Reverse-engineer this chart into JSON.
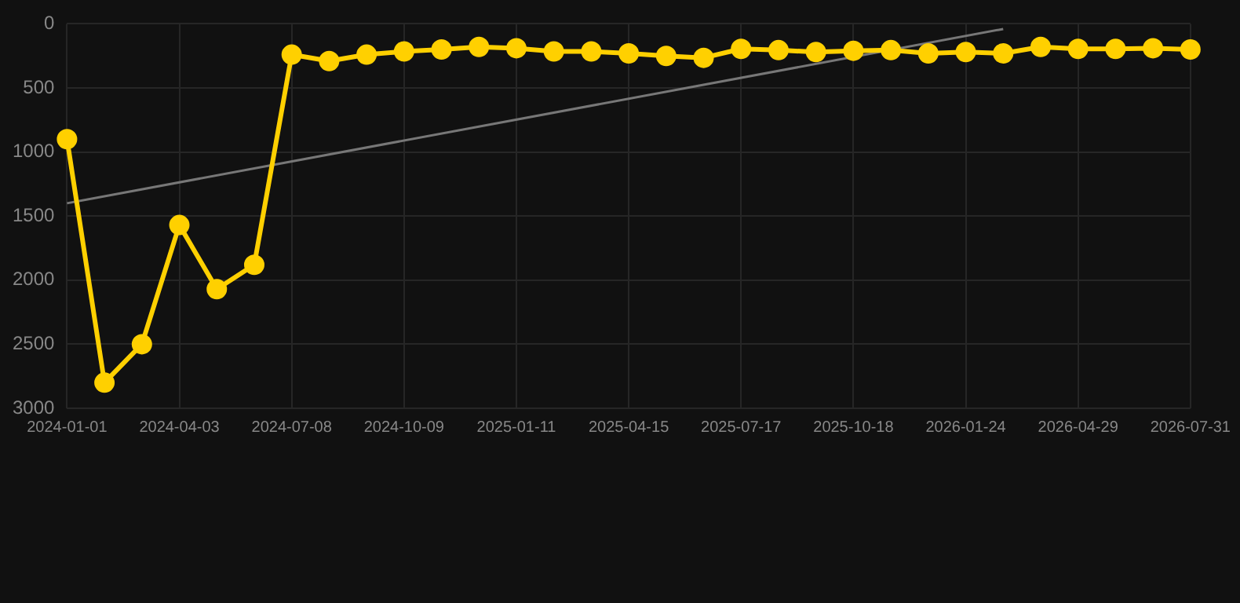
{
  "chart_data": {
    "type": "line",
    "categories": [
      "2024-01-01",
      null,
      null,
      "2024-04-03",
      null,
      null,
      "2024-07-08",
      null,
      null,
      "2024-10-09",
      null,
      null,
      "2025-01-11",
      null,
      null,
      "2025-04-15",
      null,
      null,
      "2025-07-17",
      null,
      null,
      "2025-10-18",
      null,
      null,
      "2026-01-24",
      null,
      null,
      "2026-04-29",
      null,
      null,
      "2026-07-31"
    ],
    "series": [
      {
        "color": "#ffd000",
        "marker": "circle",
        "values": [
          900,
          2800,
          2500,
          1570,
          2070,
          1880,
          240,
          290,
          240,
          215,
          200,
          180,
          190,
          215,
          215,
          230,
          250,
          265,
          195,
          205,
          220,
          210,
          205,
          230,
          220,
          230,
          180,
          195,
          195,
          190,
          200
        ]
      },
      {
        "type": "line",
        "color": "#777777",
        "marker": "none",
        "values": [
          1400,
          null,
          null,
          null,
          null,
          null,
          null,
          null,
          null,
          null,
          null,
          null,
          null,
          null,
          null,
          null,
          null,
          null,
          null,
          null,
          null,
          null,
          null,
          null,
          null,
          40,
          null,
          null,
          null,
          null,
          null
        ]
      }
    ],
    "ylim": [
      3000,
      0
    ],
    "yticks": [
      0,
      500,
      1000,
      1500,
      2000,
      2500,
      3000
    ],
    "grid": true,
    "legend": false
  }
}
